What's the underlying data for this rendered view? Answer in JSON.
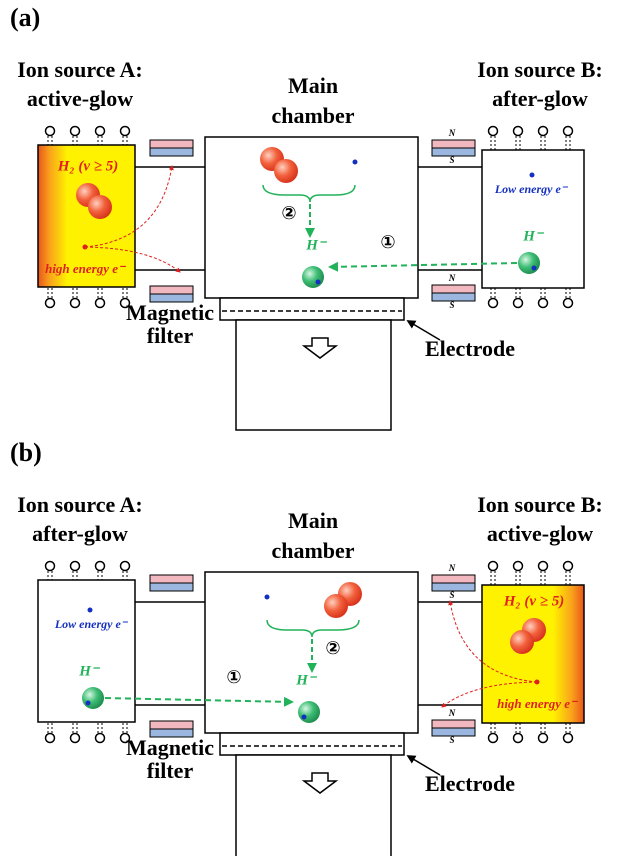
{
  "panels": [
    {
      "label": "(a)",
      "active_side": "left",
      "source_a": {
        "title": "Ion source A:",
        "state": "active-glow"
      },
      "main": {
        "title": "Main",
        "subtitle": "chamber"
      },
      "source_b": {
        "title": "Ion source B:",
        "state": "after-glow"
      },
      "active_box": {
        "molecule": "H₂ (v ≥ 5)",
        "electron": "high energy e⁻"
      },
      "after_box": {
        "electron": "Low energy e⁻",
        "ion": "H⁻"
      },
      "chamber": {
        "step2": "②",
        "ion": "H⁻",
        "step1": "①"
      },
      "magnets": {
        "top_n": "N",
        "top_s": "S",
        "bottom_n": "N",
        "bottom_s": "S"
      },
      "filter": {
        "line1": "Magnetic",
        "line2": "filter"
      },
      "electrode": "Electrode"
    },
    {
      "label": "(b)",
      "active_side": "right",
      "source_a": {
        "title": "Ion source A:",
        "state": "after-glow"
      },
      "main": {
        "title": "Main",
        "subtitle": "chamber"
      },
      "source_b": {
        "title": "Ion source B:",
        "state": "active-glow"
      },
      "active_box": {
        "molecule": "H₂ (v ≥ 5)",
        "electron": "high energy e⁻"
      },
      "after_box": {
        "electron": "Low energy e⁻",
        "ion": "H⁻"
      },
      "chamber": {
        "step2": "②",
        "ion": "H⁻",
        "step1": "①"
      },
      "magnets": {
        "top_n": "N",
        "top_s": "S",
        "bottom_n": "N",
        "bottom_s": "S"
      },
      "filter": {
        "line1": "Magnetic",
        "line2": "filter"
      },
      "electrode": "Electrode"
    }
  ]
}
